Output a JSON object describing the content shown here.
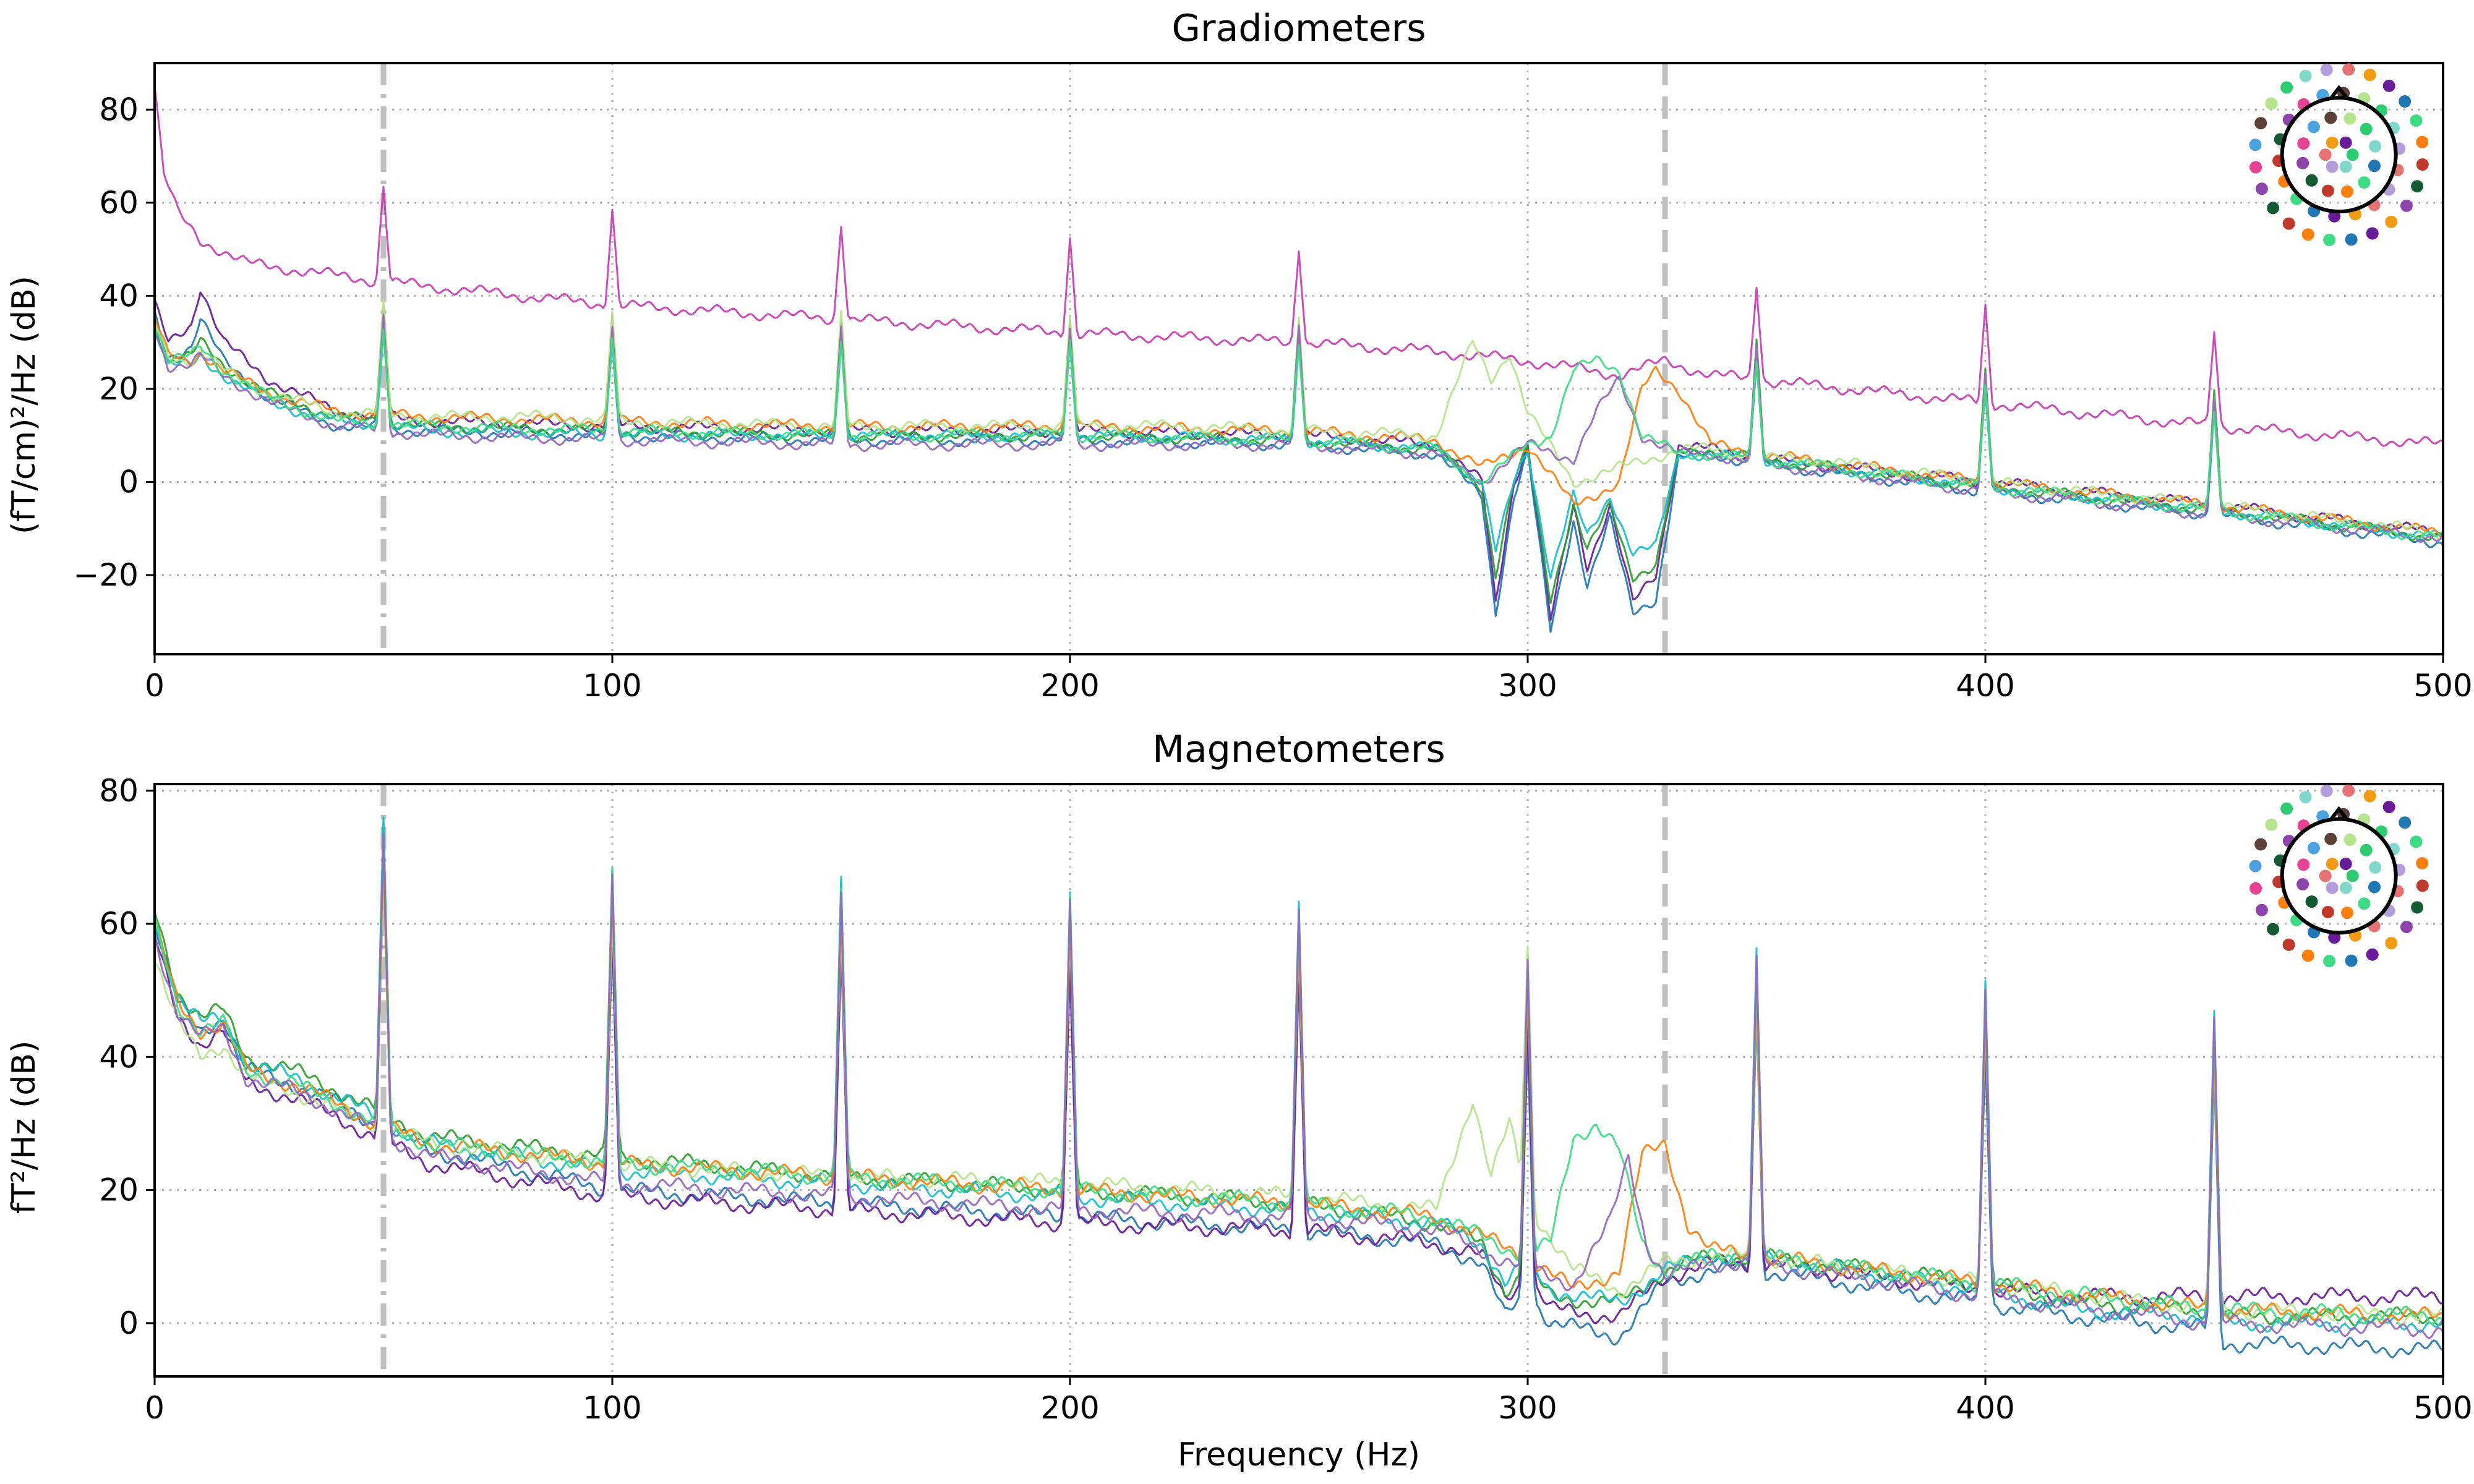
{
  "figure": {
    "xlabel": "Frequency (Hz)"
  },
  "chart_data": [
    {
      "type": "line",
      "title": "Gradiometers",
      "xlabel": "",
      "ylabel": "(fT/cm)²/Hz (dB)",
      "xlim": [
        0,
        500
      ],
      "ylim": [
        -37,
        90
      ],
      "xticks": [
        0,
        100,
        200,
        300,
        400,
        500
      ],
      "xtick_labels": [
        "0",
        "100",
        "200",
        "300",
        "400",
        "500"
      ],
      "yticks": [
        -20,
        0,
        20,
        40,
        60,
        80
      ],
      "ytick_labels": [
        "−20",
        "0",
        "20",
        "40",
        "60",
        "80"
      ],
      "grid": true,
      "legend": "sensor-position color map (top-right)",
      "vertical_markers": [
        {
          "x": 50,
          "style": "dash-dot",
          "color": "#bfbfbf"
        },
        {
          "x": 330,
          "style": "dashed",
          "color": "#bfbfbf"
        }
      ],
      "line_noise_peaks_hz": [
        50,
        100,
        150,
        200,
        250,
        350,
        400,
        450
      ],
      "series": [
        {
          "color": "#c83cb4",
          "x": [
            0,
            2,
            5,
            10,
            20,
            50,
            100,
            150,
            200,
            250,
            280,
            300,
            320,
            330,
            340,
            400,
            450,
            500
          ],
          "values": [
            85,
            66,
            58,
            52,
            47,
            43,
            38,
            35,
            32,
            30,
            28,
            26,
            23,
            26,
            23,
            17,
            12,
            8
          ]
        },
        {
          "color": "#6a1b9a",
          "x": [
            0,
            3,
            8,
            10,
            15,
            25,
            40,
            60,
            100,
            150,
            200,
            250,
            280,
            290,
            293,
            297,
            300,
            305,
            310,
            313,
            318,
            323,
            328,
            333,
            340,
            350,
            400,
            450,
            500
          ],
          "values": [
            38,
            30,
            34,
            42,
            30,
            22,
            15,
            13,
            12,
            11,
            11,
            10,
            8,
            0,
            -26,
            0,
            8,
            -30,
            -5,
            -18,
            -5,
            -26,
            -20,
            8,
            7,
            5,
            0,
            -5,
            -11
          ]
        },
        {
          "color": "#1f77b4",
          "x": [
            0,
            3,
            8,
            10,
            15,
            25,
            40,
            60,
            100,
            150,
            200,
            250,
            280,
            290,
            293,
            297,
            300,
            305,
            310,
            313,
            318,
            323,
            328,
            333,
            340,
            350,
            400,
            450,
            500
          ],
          "values": [
            36,
            27,
            29,
            35,
            26,
            18,
            12,
            11,
            10,
            9,
            9,
            8,
            6,
            -3,
            -28,
            -3,
            6,
            -32,
            -8,
            -22,
            -8,
            -28,
            -25,
            5,
            6,
            4,
            -2,
            -7,
            -13
          ]
        },
        {
          "color": "#2ca02c",
          "x": [
            0,
            3,
            8,
            10,
            15,
            25,
            40,
            60,
            100,
            150,
            200,
            250,
            280,
            290,
            293,
            297,
            300,
            305,
            310,
            313,
            318,
            323,
            328,
            333,
            340,
            350,
            400,
            450,
            500
          ],
          "values": [
            34,
            26,
            27,
            30,
            25,
            19,
            14,
            12,
            11,
            10,
            10,
            9,
            7,
            -1,
            -20,
            0,
            7,
            -25,
            -5,
            -15,
            -5,
            -20,
            -18,
            6,
            7,
            5,
            -1,
            -6,
            -12
          ]
        },
        {
          "color": "#17becf",
          "x": [
            0,
            3,
            8,
            10,
            15,
            25,
            40,
            60,
            100,
            150,
            200,
            250,
            280,
            290,
            293,
            297,
            300,
            305,
            310,
            313,
            318,
            323,
            328,
            333,
            340,
            350,
            400,
            450,
            500
          ],
          "values": [
            33,
            25,
            25,
            27,
            23,
            17,
            13,
            11,
            10,
            10,
            10,
            9,
            7,
            0,
            -15,
            0,
            7,
            -20,
            -3,
            -12,
            -3,
            -15,
            -14,
            6,
            6,
            5,
            -1,
            -6,
            -12
          ]
        },
        {
          "color": "#ff7f0e",
          "x": [
            0,
            3,
            8,
            10,
            15,
            25,
            40,
            60,
            100,
            150,
            200,
            250,
            280,
            290,
            300,
            310,
            320,
            325,
            328,
            333,
            340,
            350,
            400,
            450,
            500
          ],
          "values": [
            35,
            27,
            26,
            28,
            24,
            19,
            15,
            14,
            13,
            12,
            12,
            11,
            9,
            3,
            8,
            -5,
            0,
            20,
            24,
            20,
            8,
            6,
            0,
            -5,
            -11
          ]
        },
        {
          "color": "#b5e48c",
          "x": [
            0,
            3,
            8,
            10,
            15,
            25,
            40,
            60,
            88,
            100,
            150,
            200,
            225,
            250,
            280,
            288,
            292,
            296,
            300,
            310,
            320,
            333,
            340,
            350,
            362,
            400,
            450,
            500
          ],
          "values": [
            34,
            27,
            26,
            28,
            24,
            19,
            15,
            14,
            14,
            13,
            12,
            12,
            12,
            11,
            10,
            30,
            22,
            28,
            15,
            0,
            3,
            7,
            7,
            5,
            5,
            0,
            -5,
            -11
          ]
        },
        {
          "color": "#9467bd",
          "x": [
            0,
            3,
            8,
            10,
            15,
            25,
            40,
            60,
            100,
            150,
            200,
            250,
            280,
            290,
            300,
            310,
            315,
            320,
            325,
            333,
            340,
            350,
            400,
            450,
            500
          ],
          "values": [
            33,
            25,
            25,
            27,
            23,
            17,
            12,
            10,
            9,
            8,
            8,
            8,
            6,
            0,
            8,
            5,
            15,
            22,
            10,
            6,
            6,
            4,
            -2,
            -7,
            -12
          ]
        },
        {
          "color": "#3ddc84",
          "x": [
            0,
            3,
            8,
            10,
            15,
            25,
            40,
            60,
            100,
            150,
            200,
            250,
            280,
            290,
            300,
            305,
            310,
            315,
            320,
            325,
            333,
            340,
            350,
            400,
            450,
            500
          ],
          "values": [
            34,
            26,
            27,
            29,
            24,
            18,
            13,
            12,
            11,
            10,
            10,
            9,
            7,
            0,
            8,
            10,
            24,
            26,
            24,
            10,
            6,
            6,
            5,
            -1,
            -6,
            -12
          ]
        }
      ]
    },
    {
      "type": "line",
      "title": "Magnetometers",
      "xlabel": "Frequency (Hz)",
      "ylabel": "fT²/Hz (dB)",
      "xlim": [
        0,
        500
      ],
      "ylim": [
        -8,
        81
      ],
      "xticks": [
        0,
        100,
        200,
        300,
        400,
        500
      ],
      "xtick_labels": [
        "0",
        "100",
        "200",
        "300",
        "400",
        "500"
      ],
      "yticks": [
        0,
        20,
        40,
        60,
        80
      ],
      "ytick_labels": [
        "0",
        "20",
        "40",
        "60",
        "80"
      ],
      "grid": true,
      "legend": "sensor-position color map (top-right)",
      "vertical_markers": [
        {
          "x": 50,
          "style": "dash-dot",
          "color": "#bfbfbf"
        },
        {
          "x": 330,
          "style": "dashed",
          "color": "#bfbfbf"
        }
      ],
      "line_noise_peaks_hz": [
        50,
        100,
        150,
        200,
        250,
        300,
        350,
        400,
        450
      ],
      "series": [
        {
          "color": "#1f77b4",
          "x": [
            0,
            5,
            10,
            15,
            20,
            30,
            40,
            48,
            60,
            100,
            150,
            200,
            250,
            280,
            290,
            295,
            300,
            305,
            320,
            330,
            340,
            350,
            400,
            420,
            450,
            452,
            500
          ],
          "values": [
            60,
            48,
            44,
            46,
            38,
            36,
            33,
            30,
            26,
            20,
            18,
            16,
            14,
            12,
            9,
            1,
            5,
            0,
            -2,
            6,
            8,
            8,
            3,
            1,
            -1,
            -3,
            -4
          ]
        },
        {
          "color": "#6a1b9a",
          "x": [
            0,
            5,
            10,
            15,
            20,
            30,
            40,
            48,
            60,
            100,
            150,
            200,
            250,
            280,
            290,
            295,
            300,
            305,
            320,
            330,
            340,
            350,
            400,
            420,
            450,
            452,
            500
          ],
          "values": [
            58,
            46,
            42,
            44,
            36,
            34,
            31,
            28,
            24,
            19,
            17,
            15,
            14,
            12,
            10,
            4,
            7,
            2,
            1,
            7,
            9,
            9,
            5,
            4,
            4,
            4,
            4
          ]
        },
        {
          "color": "#2ca02c",
          "x": [
            0,
            5,
            10,
            15,
            20,
            30,
            40,
            48,
            60,
            100,
            150,
            200,
            250,
            280,
            290,
            295,
            300,
            305,
            320,
            330,
            340,
            350,
            400,
            420,
            450,
            452,
            500
          ],
          "values": [
            62,
            50,
            46,
            47,
            40,
            38,
            35,
            32,
            28,
            25,
            22,
            20,
            18,
            15,
            12,
            5,
            8,
            4,
            3,
            8,
            10,
            10,
            6,
            3,
            2,
            1,
            1
          ]
        },
        {
          "color": "#17becf",
          "x": [
            0,
            5,
            10,
            15,
            20,
            30,
            40,
            48,
            60,
            100,
            150,
            200,
            250,
            280,
            290,
            295,
            300,
            305,
            320,
            330,
            340,
            350,
            400,
            420,
            450,
            452,
            500
          ],
          "values": [
            61,
            49,
            45,
            46,
            39,
            37,
            34,
            31,
            27,
            23,
            21,
            19,
            17,
            15,
            12,
            6,
            9,
            5,
            3,
            8,
            10,
            10,
            5,
            2,
            1,
            0,
            0
          ]
        },
        {
          "color": "#b5e48c",
          "x": [
            0,
            5,
            10,
            15,
            20,
            30,
            40,
            48,
            60,
            100,
            150,
            200,
            250,
            280,
            288,
            292,
            296,
            300,
            310,
            320,
            330,
            340,
            350,
            400,
            450,
            500
          ],
          "values": [
            55,
            45,
            40,
            42,
            37,
            35,
            32,
            30,
            27,
            24,
            22,
            21,
            19,
            17,
            34,
            22,
            30,
            18,
            8,
            5,
            9,
            10,
            10,
            6,
            2,
            1
          ]
        },
        {
          "color": "#ff7f0e",
          "x": [
            0,
            5,
            10,
            15,
            20,
            30,
            40,
            48,
            60,
            100,
            150,
            200,
            250,
            280,
            300,
            310,
            320,
            325,
            330,
            335,
            340,
            350,
            400,
            450,
            500
          ],
          "values": [
            60,
            48,
            44,
            45,
            38,
            36,
            33,
            30,
            27,
            24,
            22,
            20,
            18,
            16,
            10,
            5,
            8,
            25,
            27,
            15,
            11,
            10,
            6,
            2,
            1
          ]
        },
        {
          "color": "#3ddc84",
          "x": [
            0,
            5,
            10,
            15,
            20,
            30,
            40,
            48,
            60,
            100,
            150,
            200,
            250,
            280,
            300,
            305,
            310,
            315,
            320,
            325,
            330,
            340,
            350,
            400,
            450,
            500
          ],
          "values": [
            60,
            48,
            44,
            45,
            38,
            36,
            33,
            30,
            27,
            24,
            22,
            20,
            18,
            16,
            10,
            12,
            28,
            30,
            26,
            12,
            8,
            10,
            10,
            6,
            2,
            1
          ]
        },
        {
          "color": "#9467bd",
          "x": [
            0,
            5,
            10,
            15,
            20,
            30,
            40,
            48,
            60,
            100,
            150,
            200,
            250,
            280,
            290,
            300,
            310,
            318,
            322,
            326,
            330,
            340,
            350,
            400,
            450,
            500
          ],
          "values": [
            58,
            47,
            43,
            44,
            37,
            35,
            32,
            29,
            25,
            21,
            19,
            17,
            16,
            14,
            11,
            8,
            6,
            15,
            25,
            12,
            7,
            9,
            9,
            4,
            0,
            -1
          ]
        }
      ]
    }
  ]
}
